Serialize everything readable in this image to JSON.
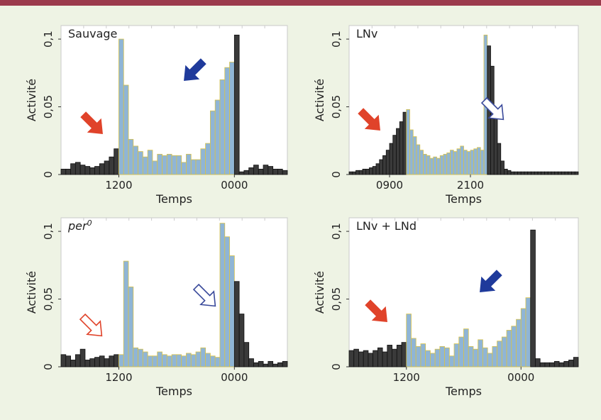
{
  "colors": {
    "top_bar": "#9b3a4c",
    "background": "#eef3e4",
    "bar_dark": "#3a3a3a",
    "bar_light": "#8fb5d6",
    "bar_light_edge": "#d8c24a",
    "arrow_red": "#e0432a",
    "arrow_blue": "#1f3a9b",
    "arrow_outline_red": "#e0432a",
    "arrow_outline_blue": "#3a4a9b"
  },
  "chart_data": [
    {
      "type": "bar",
      "title": "Sauvage",
      "title_italic": false,
      "xlabel": "Temps",
      "ylabel": "Activité",
      "yticks": [
        "0",
        "0,05",
        "0,1"
      ],
      "ylim": [
        0,
        0.11
      ],
      "xticks": [
        {
          "label": "1200",
          "bin": 12
        },
        {
          "label": "0000",
          "bin": 36
        }
      ],
      "values": [
        0.004,
        0.004,
        0.008,
        0.009,
        0.007,
        0.006,
        0.005,
        0.006,
        0.008,
        0.01,
        0.013,
        0.019,
        0.1,
        0.066,
        0.026,
        0.021,
        0.017,
        0.013,
        0.018,
        0.01,
        0.015,
        0.014,
        0.015,
        0.014,
        0.014,
        0.009,
        0.015,
        0.011,
        0.011,
        0.019,
        0.023,
        0.047,
        0.055,
        0.07,
        0.079,
        0.083,
        0.103,
        0.002,
        0.003,
        0.005,
        0.007,
        0.004,
        0.007,
        0.006,
        0.004,
        0.004,
        0.003
      ],
      "light_range": [
        12,
        35
      ],
      "arrows": [
        {
          "style": "filled",
          "color": "arrow_red",
          "direction": "down-right"
        },
        {
          "style": "filled",
          "color": "arrow_blue",
          "direction": "down-left"
        }
      ]
    },
    {
      "type": "bar",
      "title": "LNv",
      "title_italic": false,
      "xlabel": "Temps",
      "ylabel": "Activité",
      "yticks": [
        "0",
        "0,05",
        "0,1"
      ],
      "ylim": [
        0,
        0.11
      ],
      "xticks": [
        {
          "label": "0900",
          "bin": 12
        },
        {
          "label": "2100",
          "bin": 36
        }
      ],
      "values": [
        0.002,
        0.002,
        0.003,
        0.003,
        0.004,
        0.004,
        0.005,
        0.006,
        0.008,
        0.011,
        0.014,
        0.018,
        0.023,
        0.029,
        0.034,
        0.039,
        0.046,
        0.048,
        0.033,
        0.028,
        0.022,
        0.018,
        0.015,
        0.014,
        0.012,
        0.013,
        0.012,
        0.014,
        0.015,
        0.016,
        0.018,
        0.017,
        0.019,
        0.021,
        0.018,
        0.017,
        0.018,
        0.019,
        0.02,
        0.018,
        0.103,
        0.095,
        0.08,
        0.049,
        0.023,
        0.01,
        0.004,
        0.003,
        0.002,
        0.002,
        0.002,
        0.002,
        0.002,
        0.002,
        0.002,
        0.002,
        0.002,
        0.002,
        0.002,
        0.002,
        0.002,
        0.002,
        0.002,
        0.002,
        0.002,
        0.002,
        0.002,
        0.002
      ],
      "light_range": [
        17,
        40
      ],
      "arrows": [
        {
          "style": "filled",
          "color": "arrow_red",
          "direction": "down-right"
        },
        {
          "style": "outline",
          "color": "arrow_outline_blue",
          "direction": "down-right"
        }
      ]
    },
    {
      "type": "bar",
      "title": "per",
      "title_superscript": "0",
      "title_italic": true,
      "xlabel": "Temps",
      "ylabel": "Activité",
      "yticks": [
        "0",
        "0,05",
        "0,1"
      ],
      "ylim": [
        0,
        0.11
      ],
      "xticks": [
        {
          "label": "1200",
          "bin": 12
        },
        {
          "label": "0000",
          "bin": 36
        }
      ],
      "values": [
        0.009,
        0.008,
        0.005,
        0.009,
        0.013,
        0.005,
        0.006,
        0.007,
        0.008,
        0.006,
        0.008,
        0.009,
        0.009,
        0.078,
        0.059,
        0.014,
        0.013,
        0.011,
        0.008,
        0.008,
        0.011,
        0.009,
        0.008,
        0.009,
        0.009,
        0.008,
        0.01,
        0.009,
        0.011,
        0.014,
        0.01,
        0.008,
        0.007,
        0.106,
        0.096,
        0.082,
        0.063,
        0.039,
        0.018,
        0.006,
        0.003,
        0.004,
        0.002,
        0.004,
        0.002,
        0.003,
        0.004
      ],
      "light_range": [
        12,
        35
      ],
      "arrows": [
        {
          "style": "outline",
          "color": "arrow_outline_red",
          "direction": "down-right"
        },
        {
          "style": "outline",
          "color": "arrow_outline_blue",
          "direction": "down-right"
        }
      ]
    },
    {
      "type": "bar",
      "title": "LNv + LNd",
      "title_italic": false,
      "xlabel": "Temps",
      "ylabel": "Activité",
      "yticks": [
        "0",
        "0,05",
        "0,1"
      ],
      "ylim": [
        0,
        0.11
      ],
      "xticks": [
        {
          "label": "1200",
          "bin": 12
        },
        {
          "label": "0000",
          "bin": 36
        }
      ],
      "values": [
        0.012,
        0.013,
        0.011,
        0.012,
        0.01,
        0.012,
        0.014,
        0.011,
        0.016,
        0.013,
        0.016,
        0.018,
        0.039,
        0.021,
        0.015,
        0.017,
        0.012,
        0.01,
        0.013,
        0.015,
        0.014,
        0.008,
        0.017,
        0.022,
        0.028,
        0.015,
        0.013,
        0.02,
        0.014,
        0.01,
        0.015,
        0.019,
        0.022,
        0.027,
        0.03,
        0.035,
        0.043,
        0.051,
        0.101,
        0.006,
        0.003,
        0.003,
        0.003,
        0.004,
        0.003,
        0.004,
        0.005,
        0.007
      ],
      "light_range": [
        12,
        37
      ],
      "arrows": [
        {
          "style": "filled",
          "color": "arrow_red",
          "direction": "down-right"
        },
        {
          "style": "filled",
          "color": "arrow_blue",
          "direction": "down-left"
        }
      ]
    }
  ]
}
